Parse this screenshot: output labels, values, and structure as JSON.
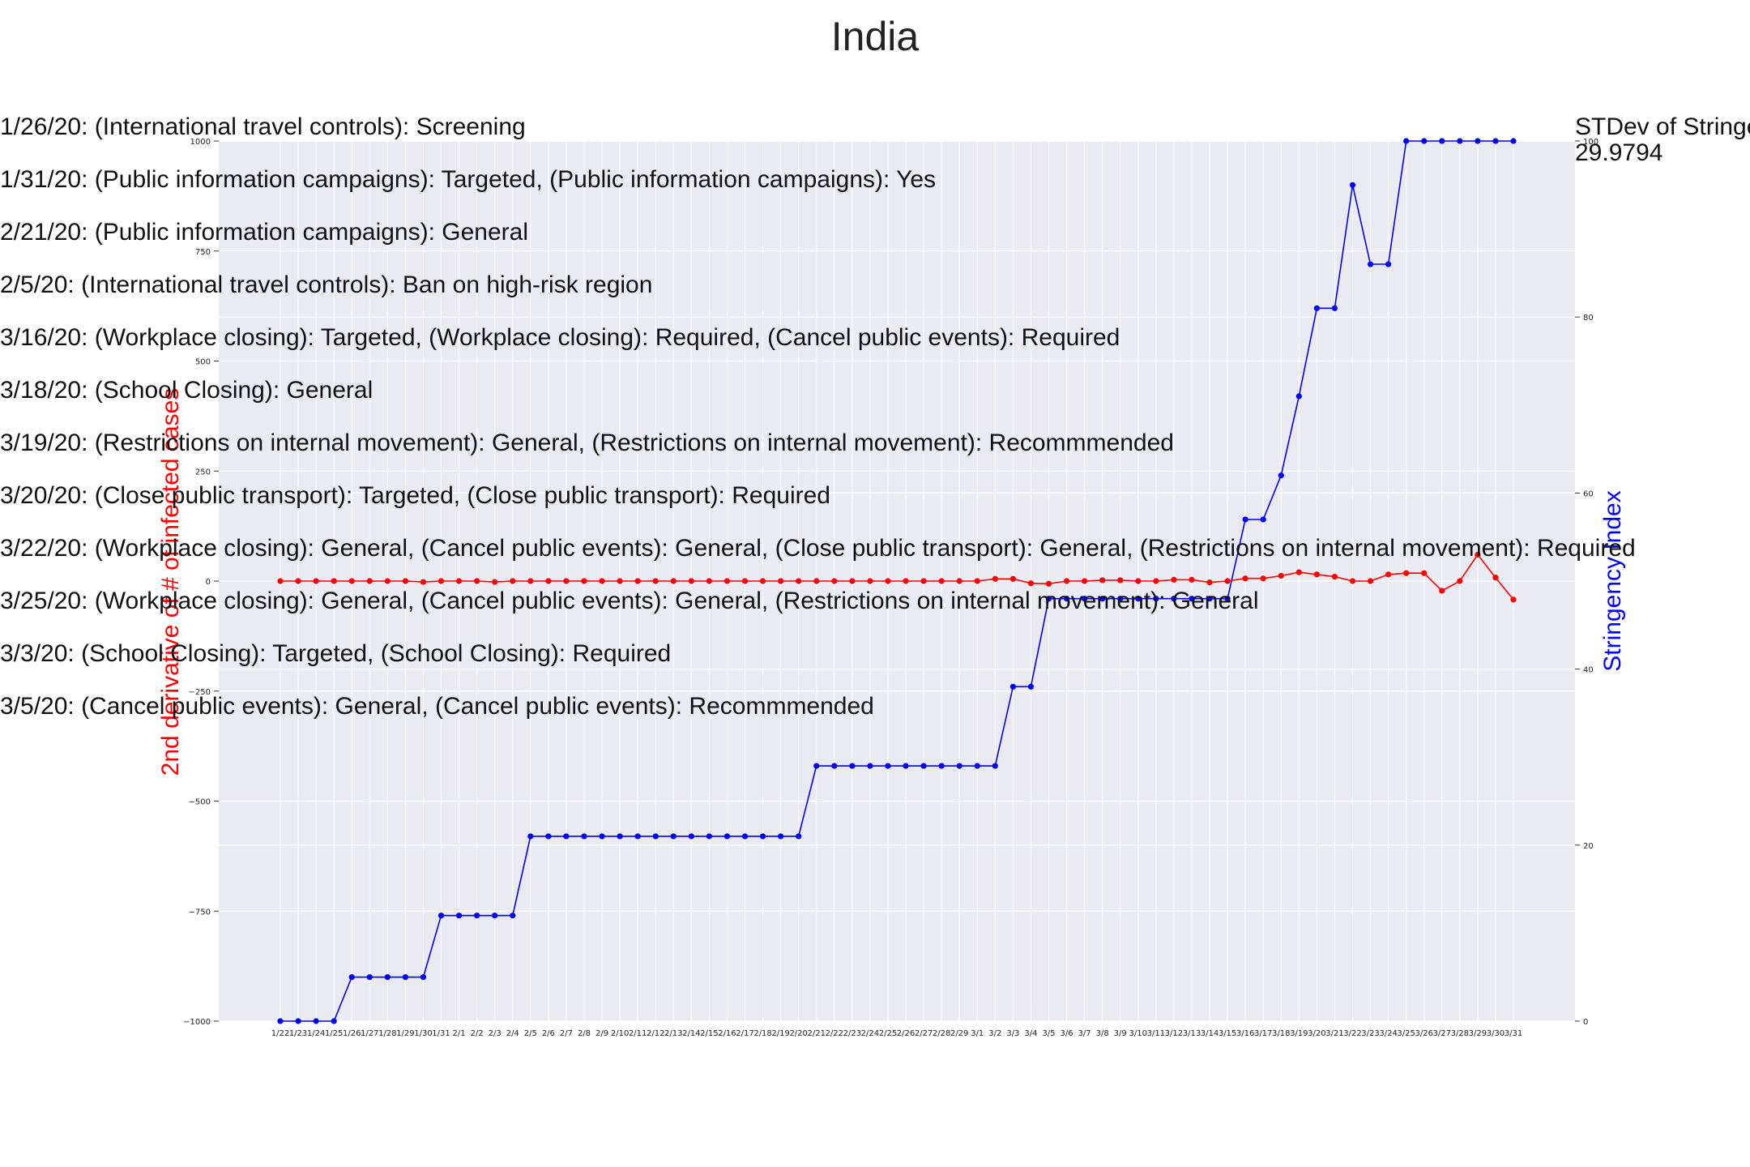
{
  "chart_data": {
    "type": "line",
    "title": "India",
    "ylabel_left": "2nd derivative of # of infected cases",
    "ylabel_right": "Stringency Index",
    "ylim_left": [
      -1000,
      1000
    ],
    "ylim_right": [
      0,
      100
    ],
    "yticks_left": [
      -1000,
      -750,
      -500,
      -250,
      0,
      250,
      500,
      750,
      1000
    ],
    "yticks_right": [
      0,
      20,
      40,
      60,
      80,
      100
    ],
    "categories": [
      "1/22",
      "1/23",
      "1/24",
      "1/25",
      "1/26",
      "1/27",
      "1/28",
      "1/29",
      "1/30",
      "1/31",
      "2/1",
      "2/2",
      "2/3",
      "2/4",
      "2/5",
      "2/6",
      "2/7",
      "2/8",
      "2/9",
      "2/10",
      "2/11",
      "2/12",
      "2/13",
      "2/14",
      "2/15",
      "2/16",
      "2/17",
      "2/18",
      "2/19",
      "2/20",
      "2/21",
      "2/22",
      "2/23",
      "2/24",
      "2/25",
      "2/26",
      "2/27",
      "2/28",
      "2/29",
      "3/1",
      "3/2",
      "3/3",
      "3/4",
      "3/5",
      "3/6",
      "3/7",
      "3/8",
      "3/9",
      "3/10",
      "3/11",
      "3/12",
      "3/13",
      "3/14",
      "3/15",
      "3/16",
      "3/17",
      "3/18",
      "3/19",
      "3/20",
      "3/21",
      "3/22",
      "3/23",
      "3/24",
      "3/25",
      "3/26",
      "3/27",
      "3/28",
      "3/29",
      "3/30",
      "3/31"
    ],
    "series": [
      {
        "axis": "left",
        "color": "#ff0000",
        "values": [
          0,
          0,
          0,
          0,
          0,
          0,
          0,
          0,
          -2,
          0,
          0,
          0,
          -2,
          0,
          0,
          0,
          0,
          0,
          0,
          0,
          0,
          0,
          0,
          0,
          0,
          0,
          0,
          0,
          0,
          0,
          0,
          0,
          0,
          0,
          0,
          0,
          0,
          0,
          0,
          0,
          5,
          5,
          -5,
          -6,
          0,
          0,
          2,
          2,
          0,
          0,
          3,
          3,
          -3,
          0,
          6,
          6,
          12,
          20,
          15,
          10,
          0,
          0,
          15,
          18,
          18,
          -22,
          0,
          60,
          8,
          -42
        ]
      },
      {
        "axis": "right",
        "color": "#0000ff",
        "values": [
          0,
          0,
          0,
          0,
          5,
          5,
          5,
          5,
          5,
          12,
          12,
          12,
          12,
          12,
          21,
          21,
          21,
          21,
          21,
          21,
          21,
          21,
          21,
          21,
          21,
          21,
          21,
          21,
          21,
          21,
          29,
          29,
          29,
          29,
          29,
          29,
          29,
          29,
          29,
          29,
          29,
          38,
          38,
          48,
          48,
          48,
          48,
          48,
          48,
          48,
          48,
          48,
          48,
          48,
          57,
          57,
          62,
          71,
          81,
          81,
          95,
          86,
          86,
          100,
          100,
          100,
          100,
          100,
          100,
          100
        ]
      }
    ],
    "annotations": [
      "1/26/20: (International travel controls): Screening",
      "1/31/20: (Public information campaigns): Targeted, (Public information campaigns): Yes",
      "2/21/20: (Public information campaigns): General",
      "2/5/20: (International travel controls): Ban on high-risk region",
      "3/16/20: (Workplace closing): Targeted, (Workplace closing): Required, (Cancel public events): Required",
      "3/18/20: (School Closing): General",
      "3/19/20: (Restrictions on internal movement): General, (Restrictions on internal movement): Recommmended",
      "3/20/20: (Close public transport): Targeted, (Close public transport): Required",
      "3/22/20: (Workplace closing): General, (Cancel public events): General, (Close public transport): General, (Restrictions on internal movement): Required",
      "3/25/20: (Workplace closing): General, (Cancel public events): General, (Restrictions on internal movement): General",
      "3/3/20: (School Closing): Targeted, (School Closing): Required",
      "3/5/20: (Cancel public events): General, (Cancel public events): Recommmended"
    ],
    "stdev_label": "STDev of Stringency Index",
    "stdev_value": "29.9794",
    "grid": true,
    "background_color": "#eaeaf2"
  }
}
